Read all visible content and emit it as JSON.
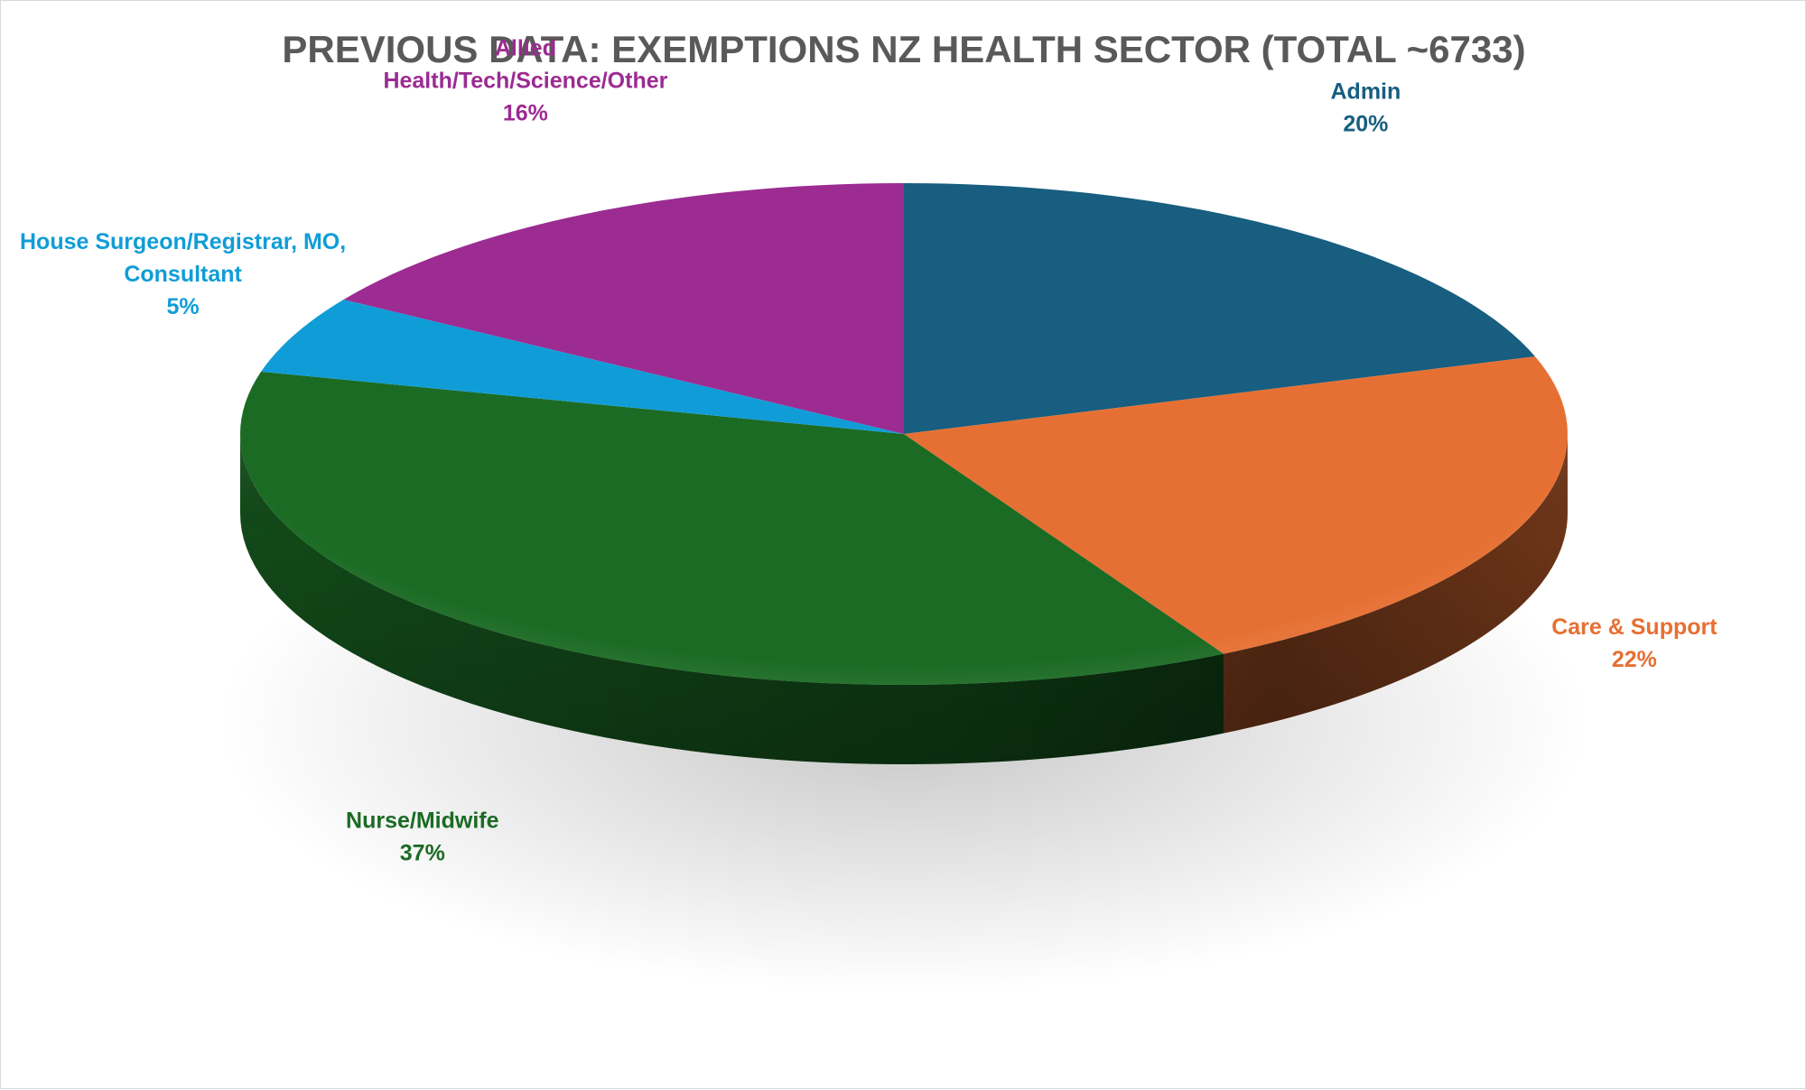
{
  "chart_data": {
    "type": "pie",
    "title": "PREVIOUS DATA: EXEMPTIONS NZ HEALTH SECTOR (TOTAL ~6733)",
    "slices": [
      {
        "name": "Admin",
        "value": 20,
        "label": "20%",
        "color": "#175E80"
      },
      {
        "name": "Care & Support",
        "value": 22,
        "label": "22%",
        "color": "#E67033"
      },
      {
        "name": "Nurse/Midwife",
        "value": 37,
        "label": "37%",
        "color": "#1B6B24"
      },
      {
        "name": "House Surgeon/Registrar, MO, Consultant",
        "value": 5,
        "label": "5%",
        "color": "#109DD7"
      },
      {
        "name": "Allied Health/Tech/Science/Other",
        "value": 16,
        "label": "16%",
        "color": "#9C2B92"
      }
    ],
    "legend": "none"
  }
}
